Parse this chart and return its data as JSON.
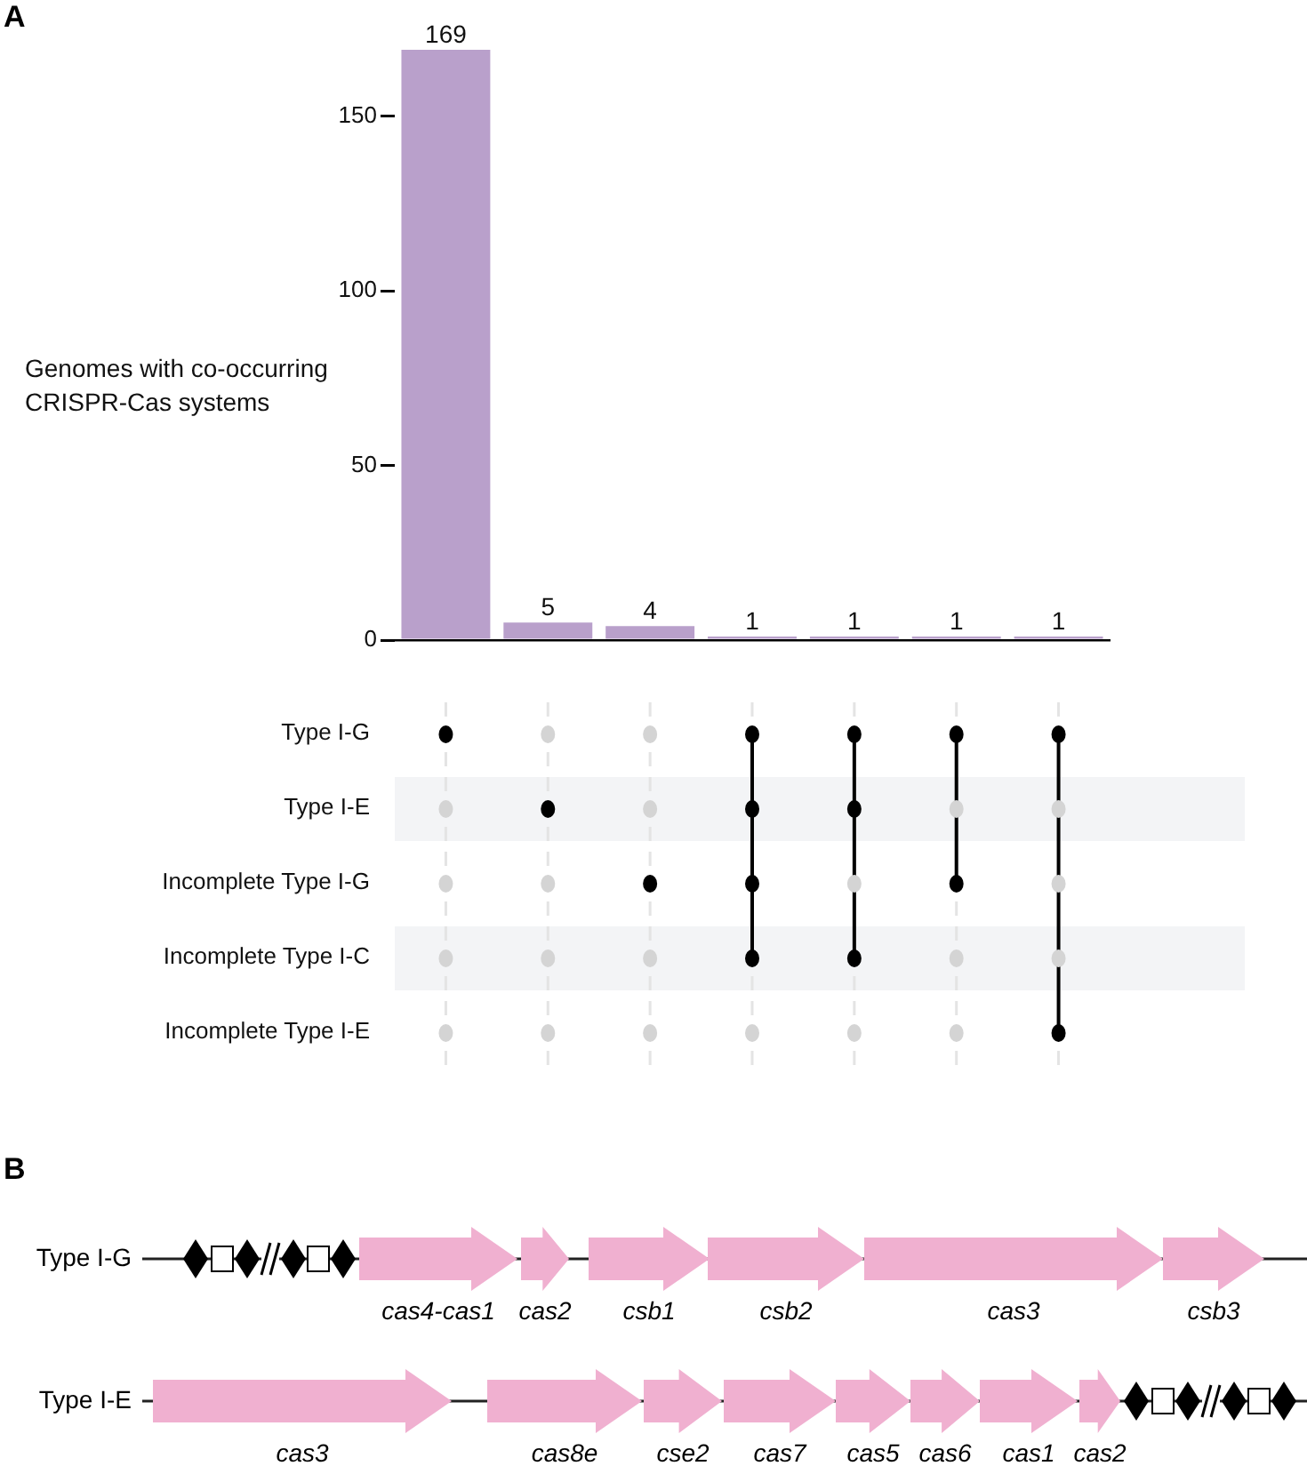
{
  "chart_data": [
    {
      "type": "bar",
      "categories": [
        null,
        null,
        null,
        null,
        null,
        null,
        null
      ],
      "values": [
        169,
        5,
        4,
        1,
        1,
        1,
        1
      ],
      "color": "#b9a0cb",
      "ylim": [
        0,
        169
      ],
      "yticks": [
        0,
        50,
        100,
        150
      ],
      "ylabel": "Genomes with co-occurring CRISPR-Cas systems",
      "data_labels": true,
      "grid": false,
      "legend": false,
      "annotations": [
        "A"
      ]
    },
    {
      "type": "other",
      "annotations": [
        "Type I-G",
        "Type I-E",
        "Incomplete Type I-G",
        "Incomplete Type I-C",
        "Incomplete Type I-E"
      ]
    },
    {
      "type": "other",
      "annotations": [
        "B",
        "Type I-G",
        "Type I-E",
        "cas4-cas1",
        "cas2",
        "csb1",
        "csb2",
        "cas3",
        "csb3",
        "cas3",
        "cas8e",
        "cse2",
        "cas7",
        "cas5",
        "cas6",
        "cas1",
        "cas2"
      ]
    }
  ]
}
